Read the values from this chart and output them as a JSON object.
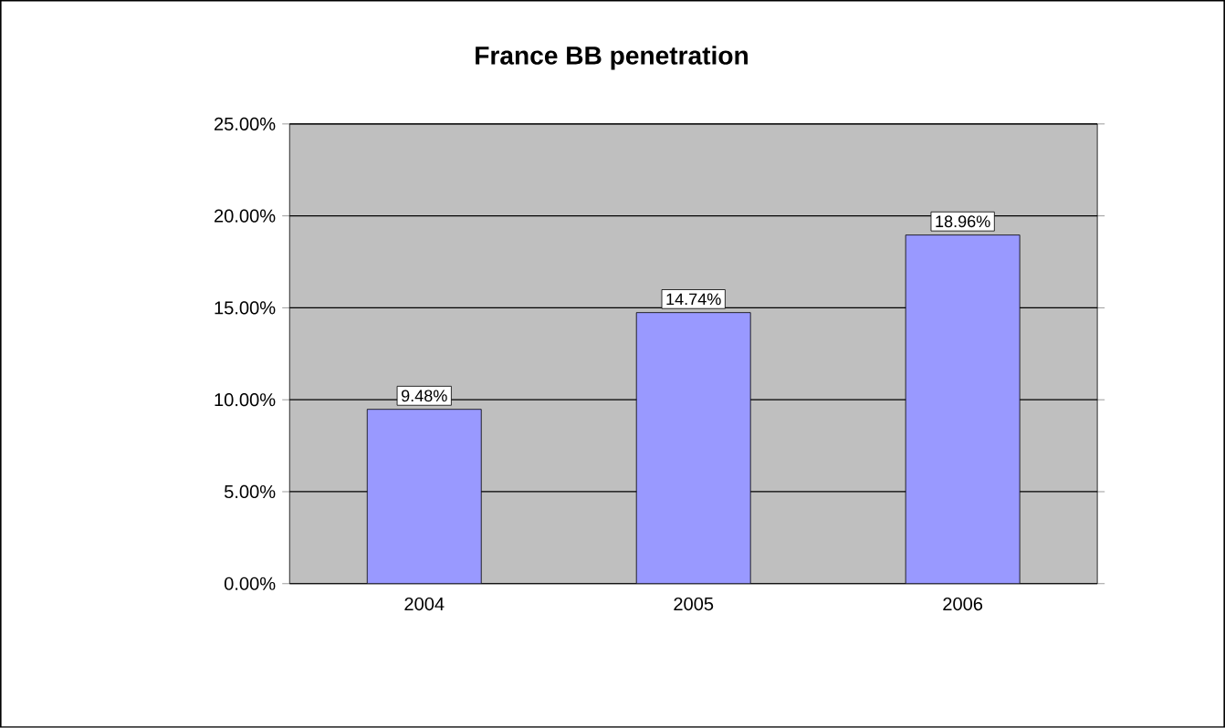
{
  "chart_data": {
    "type": "bar",
    "title": "France BB penetration",
    "categories": [
      "2004",
      "2005",
      "2006"
    ],
    "values": [
      9.48,
      14.74,
      18.96
    ],
    "value_labels": [
      "9.48%",
      "14.74%",
      "18.96%"
    ],
    "color": "#9999ff",
    "ylim": [
      0,
      25
    ],
    "yticks": [
      {
        "value": 0,
        "label": "0.00%"
      },
      {
        "value": 5,
        "label": "5.00%"
      },
      {
        "value": 10,
        "label": "10.00%"
      },
      {
        "value": 15,
        "label": "15.00%"
      },
      {
        "value": 20,
        "label": "20.00%"
      },
      {
        "value": 25,
        "label": "25.00%"
      }
    ],
    "grid": "y"
  }
}
